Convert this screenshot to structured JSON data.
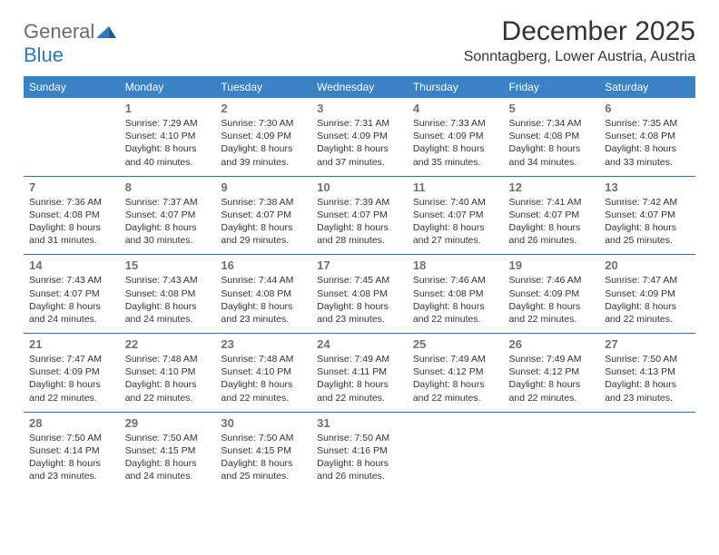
{
  "logo": {
    "word1": "General",
    "word2": "Blue"
  },
  "title": "December 2025",
  "location": "Sonntagberg, Lower Austria, Austria",
  "colors": {
    "header_bg": "#3a82c4",
    "header_text": "#ffffff",
    "row_divider": "#2f6fa8",
    "daynum": "#6f6f6f",
    "body_text": "#333333",
    "logo_gray": "#6b6b6b",
    "logo_blue": "#2f79bd"
  },
  "weekdays": [
    "Sunday",
    "Monday",
    "Tuesday",
    "Wednesday",
    "Thursday",
    "Friday",
    "Saturday"
  ],
  "weeks": [
    [
      null,
      {
        "n": "1",
        "sr": "7:29 AM",
        "ss": "4:10 PM",
        "dl": "8 hours and 40 minutes."
      },
      {
        "n": "2",
        "sr": "7:30 AM",
        "ss": "4:09 PM",
        "dl": "8 hours and 39 minutes."
      },
      {
        "n": "3",
        "sr": "7:31 AM",
        "ss": "4:09 PM",
        "dl": "8 hours and 37 minutes."
      },
      {
        "n": "4",
        "sr": "7:33 AM",
        "ss": "4:09 PM",
        "dl": "8 hours and 35 minutes."
      },
      {
        "n": "5",
        "sr": "7:34 AM",
        "ss": "4:08 PM",
        "dl": "8 hours and 34 minutes."
      },
      {
        "n": "6",
        "sr": "7:35 AM",
        "ss": "4:08 PM",
        "dl": "8 hours and 33 minutes."
      }
    ],
    [
      {
        "n": "7",
        "sr": "7:36 AM",
        "ss": "4:08 PM",
        "dl": "8 hours and 31 minutes."
      },
      {
        "n": "8",
        "sr": "7:37 AM",
        "ss": "4:07 PM",
        "dl": "8 hours and 30 minutes."
      },
      {
        "n": "9",
        "sr": "7:38 AM",
        "ss": "4:07 PM",
        "dl": "8 hours and 29 minutes."
      },
      {
        "n": "10",
        "sr": "7:39 AM",
        "ss": "4:07 PM",
        "dl": "8 hours and 28 minutes."
      },
      {
        "n": "11",
        "sr": "7:40 AM",
        "ss": "4:07 PM",
        "dl": "8 hours and 27 minutes."
      },
      {
        "n": "12",
        "sr": "7:41 AM",
        "ss": "4:07 PM",
        "dl": "8 hours and 26 minutes."
      },
      {
        "n": "13",
        "sr": "7:42 AM",
        "ss": "4:07 PM",
        "dl": "8 hours and 25 minutes."
      }
    ],
    [
      {
        "n": "14",
        "sr": "7:43 AM",
        "ss": "4:07 PM",
        "dl": "8 hours and 24 minutes."
      },
      {
        "n": "15",
        "sr": "7:43 AM",
        "ss": "4:08 PM",
        "dl": "8 hours and 24 minutes."
      },
      {
        "n": "16",
        "sr": "7:44 AM",
        "ss": "4:08 PM",
        "dl": "8 hours and 23 minutes."
      },
      {
        "n": "17",
        "sr": "7:45 AM",
        "ss": "4:08 PM",
        "dl": "8 hours and 23 minutes."
      },
      {
        "n": "18",
        "sr": "7:46 AM",
        "ss": "4:08 PM",
        "dl": "8 hours and 22 minutes."
      },
      {
        "n": "19",
        "sr": "7:46 AM",
        "ss": "4:09 PM",
        "dl": "8 hours and 22 minutes."
      },
      {
        "n": "20",
        "sr": "7:47 AM",
        "ss": "4:09 PM",
        "dl": "8 hours and 22 minutes."
      }
    ],
    [
      {
        "n": "21",
        "sr": "7:47 AM",
        "ss": "4:09 PM",
        "dl": "8 hours and 22 minutes."
      },
      {
        "n": "22",
        "sr": "7:48 AM",
        "ss": "4:10 PM",
        "dl": "8 hours and 22 minutes."
      },
      {
        "n": "23",
        "sr": "7:48 AM",
        "ss": "4:10 PM",
        "dl": "8 hours and 22 minutes."
      },
      {
        "n": "24",
        "sr": "7:49 AM",
        "ss": "4:11 PM",
        "dl": "8 hours and 22 minutes."
      },
      {
        "n": "25",
        "sr": "7:49 AM",
        "ss": "4:12 PM",
        "dl": "8 hours and 22 minutes."
      },
      {
        "n": "26",
        "sr": "7:49 AM",
        "ss": "4:12 PM",
        "dl": "8 hours and 22 minutes."
      },
      {
        "n": "27",
        "sr": "7:50 AM",
        "ss": "4:13 PM",
        "dl": "8 hours and 23 minutes."
      }
    ],
    [
      {
        "n": "28",
        "sr": "7:50 AM",
        "ss": "4:14 PM",
        "dl": "8 hours and 23 minutes."
      },
      {
        "n": "29",
        "sr": "7:50 AM",
        "ss": "4:15 PM",
        "dl": "8 hours and 24 minutes."
      },
      {
        "n": "30",
        "sr": "7:50 AM",
        "ss": "4:15 PM",
        "dl": "8 hours and 25 minutes."
      },
      {
        "n": "31",
        "sr": "7:50 AM",
        "ss": "4:16 PM",
        "dl": "8 hours and 26 minutes."
      },
      null,
      null,
      null
    ]
  ],
  "labels": {
    "sunrise": "Sunrise:",
    "sunset": "Sunset:",
    "daylight": "Daylight:"
  }
}
